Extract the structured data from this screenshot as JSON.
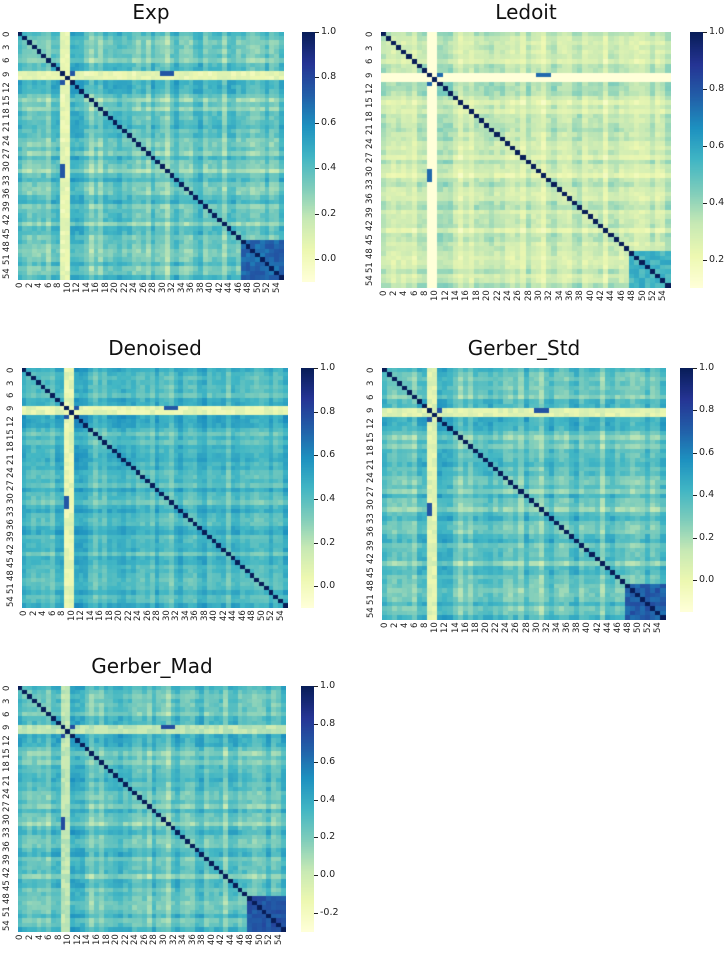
{
  "colormap": {
    "name": "YlGnBu",
    "stops": [
      [
        0.0,
        "#ffffd9"
      ],
      [
        0.125,
        "#edf8b1"
      ],
      [
        0.25,
        "#c7e9b4"
      ],
      [
        0.375,
        "#7fcdbb"
      ],
      [
        0.5,
        "#41b6c4"
      ],
      [
        0.625,
        "#1d91c0"
      ],
      [
        0.75,
        "#225ea8"
      ],
      [
        0.875,
        "#253494"
      ],
      [
        1.0,
        "#081d58"
      ]
    ]
  },
  "chart_data": [
    {
      "type": "heatmap",
      "title": "Exp",
      "size": 56,
      "x_ticks": [
        "0",
        "2",
        "4",
        "6",
        "8",
        "10",
        "12",
        "14",
        "16",
        "18",
        "20",
        "22",
        "24",
        "26",
        "28",
        "30",
        "32",
        "34",
        "36",
        "38",
        "40",
        "42",
        "44",
        "46",
        "48",
        "50",
        "52",
        "54"
      ],
      "y_ticks": [
        "0",
        "3",
        "6",
        "9",
        "12",
        "15",
        "18",
        "21",
        "24",
        "27",
        "30",
        "33",
        "36",
        "39",
        "42",
        "45",
        "48",
        "51",
        "54"
      ],
      "colorbar_ticks": [
        "0.0",
        "0.2",
        "0.4",
        "0.6",
        "0.8",
        "1.0"
      ],
      "vmin": -0.1,
      "vmax": 1.0,
      "diagonal": 1.0,
      "offdiag_mean": 0.35,
      "offdiag_spread": 0.15,
      "low_rows": [
        9,
        10
      ],
      "block": {
        "start": 47,
        "end": 55,
        "value": 0.7
      }
    },
    {
      "type": "heatmap",
      "title": "Ledoit",
      "size": 56,
      "x_ticks": [
        "0",
        "2",
        "4",
        "6",
        "8",
        "10",
        "12",
        "14",
        "16",
        "18",
        "20",
        "22",
        "24",
        "26",
        "28",
        "30",
        "32",
        "34",
        "36",
        "38",
        "40",
        "42",
        "44",
        "46",
        "48",
        "50",
        "52",
        "54"
      ],
      "y_ticks": [
        "0",
        "3",
        "6",
        "9",
        "12",
        "15",
        "18",
        "21",
        "24",
        "27",
        "30",
        "33",
        "36",
        "39",
        "42",
        "45",
        "48",
        "51",
        "54"
      ],
      "colorbar_ticks": [
        "0.2",
        "0.4",
        "0.6",
        "0.8",
        "1.0"
      ],
      "vmin": 0.1,
      "vmax": 1.0,
      "diagonal": 1.0,
      "offdiag_mean": 0.3,
      "offdiag_spread": 0.1,
      "low_rows": [
        9,
        10
      ],
      "block": {
        "start": 48,
        "end": 55,
        "value": 0.55
      }
    },
    {
      "type": "heatmap",
      "title": "Denoised",
      "size": 56,
      "x_ticks": [
        "0",
        "2",
        "4",
        "6",
        "8",
        "10",
        "12",
        "14",
        "16",
        "18",
        "20",
        "22",
        "24",
        "26",
        "28",
        "30",
        "32",
        "34",
        "36",
        "38",
        "40",
        "42",
        "44",
        "46",
        "48",
        "50",
        "52",
        "54"
      ],
      "y_ticks": [
        "0",
        "3",
        "6",
        "9",
        "12",
        "15",
        "18",
        "21",
        "24",
        "27",
        "30",
        "33",
        "36",
        "39",
        "42",
        "45",
        "48",
        "51",
        "54"
      ],
      "colorbar_ticks": [
        "0.0",
        "0.2",
        "0.4",
        "0.6",
        "0.8",
        "1.0"
      ],
      "vmin": -0.1,
      "vmax": 1.0,
      "diagonal": 1.0,
      "offdiag_mean": 0.42,
      "offdiag_spread": 0.12,
      "low_rows": [
        9,
        10
      ],
      "block": null
    },
    {
      "type": "heatmap",
      "title": "Gerber_Std",
      "size": 56,
      "x_ticks": [
        "0",
        "2",
        "4",
        "6",
        "8",
        "10",
        "12",
        "14",
        "16",
        "18",
        "20",
        "22",
        "24",
        "26",
        "28",
        "30",
        "32",
        "34",
        "36",
        "38",
        "40",
        "42",
        "44",
        "46",
        "48",
        "50",
        "52",
        "54"
      ],
      "y_ticks": [
        "0",
        "3",
        "6",
        "9",
        "12",
        "15",
        "18",
        "21",
        "24",
        "27",
        "30",
        "33",
        "36",
        "39",
        "42",
        "45",
        "48",
        "51",
        "54"
      ],
      "colorbar_ticks": [
        "0.0",
        "0.2",
        "0.4",
        "0.6",
        "0.8",
        "1.0"
      ],
      "vmin": -0.15,
      "vmax": 1.0,
      "diagonal": 1.0,
      "offdiag_mean": 0.33,
      "offdiag_spread": 0.15,
      "low_rows": [
        9,
        10
      ],
      "block": {
        "start": 48,
        "end": 55,
        "value": 0.72
      }
    },
    {
      "type": "heatmap",
      "title": "Gerber_Mad",
      "size": 56,
      "x_ticks": [
        "0",
        "2",
        "4",
        "6",
        "8",
        "10",
        "12",
        "14",
        "16",
        "18",
        "20",
        "22",
        "24",
        "26",
        "28",
        "30",
        "32",
        "34",
        "36",
        "38",
        "40",
        "42",
        "44",
        "46",
        "48",
        "50",
        "52",
        "54"
      ],
      "y_ticks": [
        "0",
        "3",
        "6",
        "9",
        "12",
        "15",
        "18",
        "21",
        "24",
        "27",
        "30",
        "33",
        "36",
        "39",
        "42",
        "45",
        "48",
        "51",
        "54"
      ],
      "colorbar_ticks": [
        "-0.2",
        "0.0",
        "0.2",
        "0.4",
        "0.6",
        "0.8",
        "1.0"
      ],
      "vmin": -0.3,
      "vmax": 1.0,
      "diagonal": 1.0,
      "offdiag_mean": 0.25,
      "offdiag_spread": 0.17,
      "low_rows": [
        9,
        10
      ],
      "block": {
        "start": 48,
        "end": 55,
        "value": 0.72
      }
    }
  ]
}
